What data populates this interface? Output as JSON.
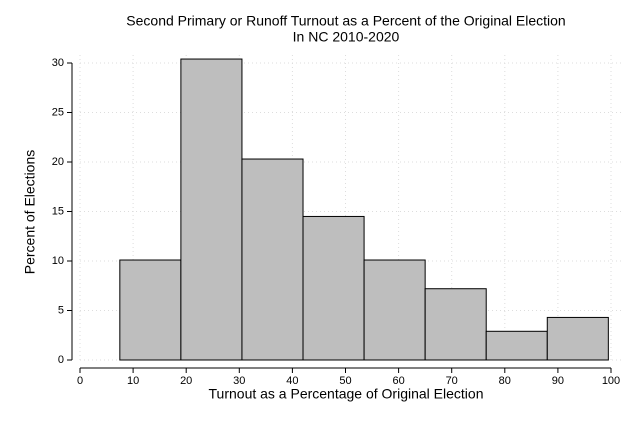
{
  "chart_data": {
    "type": "histogram",
    "title": "Second Primary or Runoff Turnout as a Percent of the Original Election",
    "subtitle": "In NC 2010-2020",
    "x_label": "Turnout as a Percentage of Original Election",
    "y_label": "Percent of Elections",
    "bins": [
      7.5,
      19,
      30.5,
      42,
      53.5,
      65,
      76.5,
      88,
      99.5
    ],
    "values": [
      10.1,
      30.4,
      20.3,
      14.5,
      10.1,
      7.2,
      2.9,
      4.3
    ],
    "color": "#bebebe",
    "xlim": [
      0,
      100
    ],
    "xticks": [
      0,
      10,
      20,
      30,
      40,
      50,
      60,
      70,
      80,
      90,
      100
    ],
    "ylim": [
      0,
      30
    ],
    "yticks": [
      0,
      5,
      10,
      15,
      20,
      25,
      30
    ],
    "grid": true
  }
}
